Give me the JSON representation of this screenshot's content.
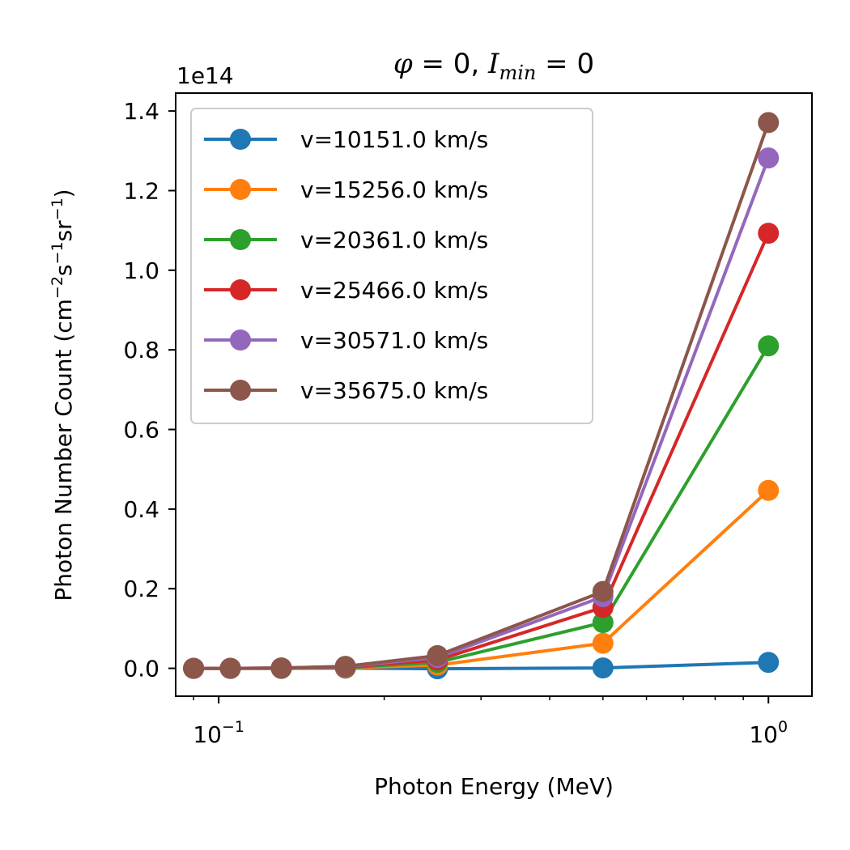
{
  "chart_data": {
    "type": "line",
    "title": {
      "phi_symbol": "φ",
      "eq1": " = 0, ",
      "i_symbol": "I",
      "i_sub": "min",
      "eq2": " = 0"
    },
    "xlabel": "Photon Energy (MeV)",
    "ylabel": {
      "base": "Photon Number Count (cm",
      "exp1": "−2",
      "mid1": "s",
      "exp2": "−1",
      "mid2": "sr",
      "exp3": "−1",
      "end": ")"
    },
    "y_offset_label": "1e14",
    "xscale": "log",
    "xlim": [
      0.0835,
      1.2
    ],
    "ylim": [
      -0.07,
      1.445
    ],
    "x_ticks": [
      {
        "value": 0.1,
        "base": "10",
        "exp": "−1"
      },
      {
        "value": 1.0,
        "base": "10",
        "exp": "0"
      }
    ],
    "y_ticks": [
      {
        "value": 0.0,
        "label": "0.0"
      },
      {
        "value": 0.2,
        "label": "0.2"
      },
      {
        "value": 0.4,
        "label": "0.4"
      },
      {
        "value": 0.6,
        "label": "0.6"
      },
      {
        "value": 0.8,
        "label": "0.8"
      },
      {
        "value": 1.0,
        "label": "1.0"
      },
      {
        "value": 1.2,
        "label": "1.2"
      },
      {
        "value": 1.4,
        "label": "1.4"
      }
    ],
    "legend_position": "upper-left",
    "x": [
      0.09,
      0.105,
      0.13,
      0.17,
      0.25,
      0.5,
      1.0
    ],
    "series": [
      {
        "name": "v=10151.0 km/s",
        "color": "#1f77b4",
        "values": [
          0.0,
          0.0,
          0.0,
          0.0005,
          -0.001,
          0.001,
          0.015
        ]
      },
      {
        "name": "v=15256.0 km/s",
        "color": "#ff7f0e",
        "values": [
          0.0,
          0.0,
          0.0,
          0.001,
          0.008,
          0.063,
          0.447
        ]
      },
      {
        "name": "v=20361.0 km/s",
        "color": "#2ca02c",
        "values": [
          0.0,
          0.0,
          0.0,
          0.002,
          0.015,
          0.115,
          0.81
        ]
      },
      {
        "name": "v=25466.0 km/s",
        "color": "#d62728",
        "values": [
          0.0,
          0.0,
          0.0005,
          0.003,
          0.021,
          0.153,
          1.093
        ]
      },
      {
        "name": "v=30571.0 km/s",
        "color": "#9467bd",
        "values": [
          0.0,
          0.0,
          0.001,
          0.004,
          0.027,
          0.18,
          1.282
        ]
      },
      {
        "name": "v=35675.0 km/s",
        "color": "#8c564b",
        "values": [
          0.0,
          0.0,
          0.001,
          0.005,
          0.032,
          0.193,
          1.371
        ]
      }
    ]
  }
}
